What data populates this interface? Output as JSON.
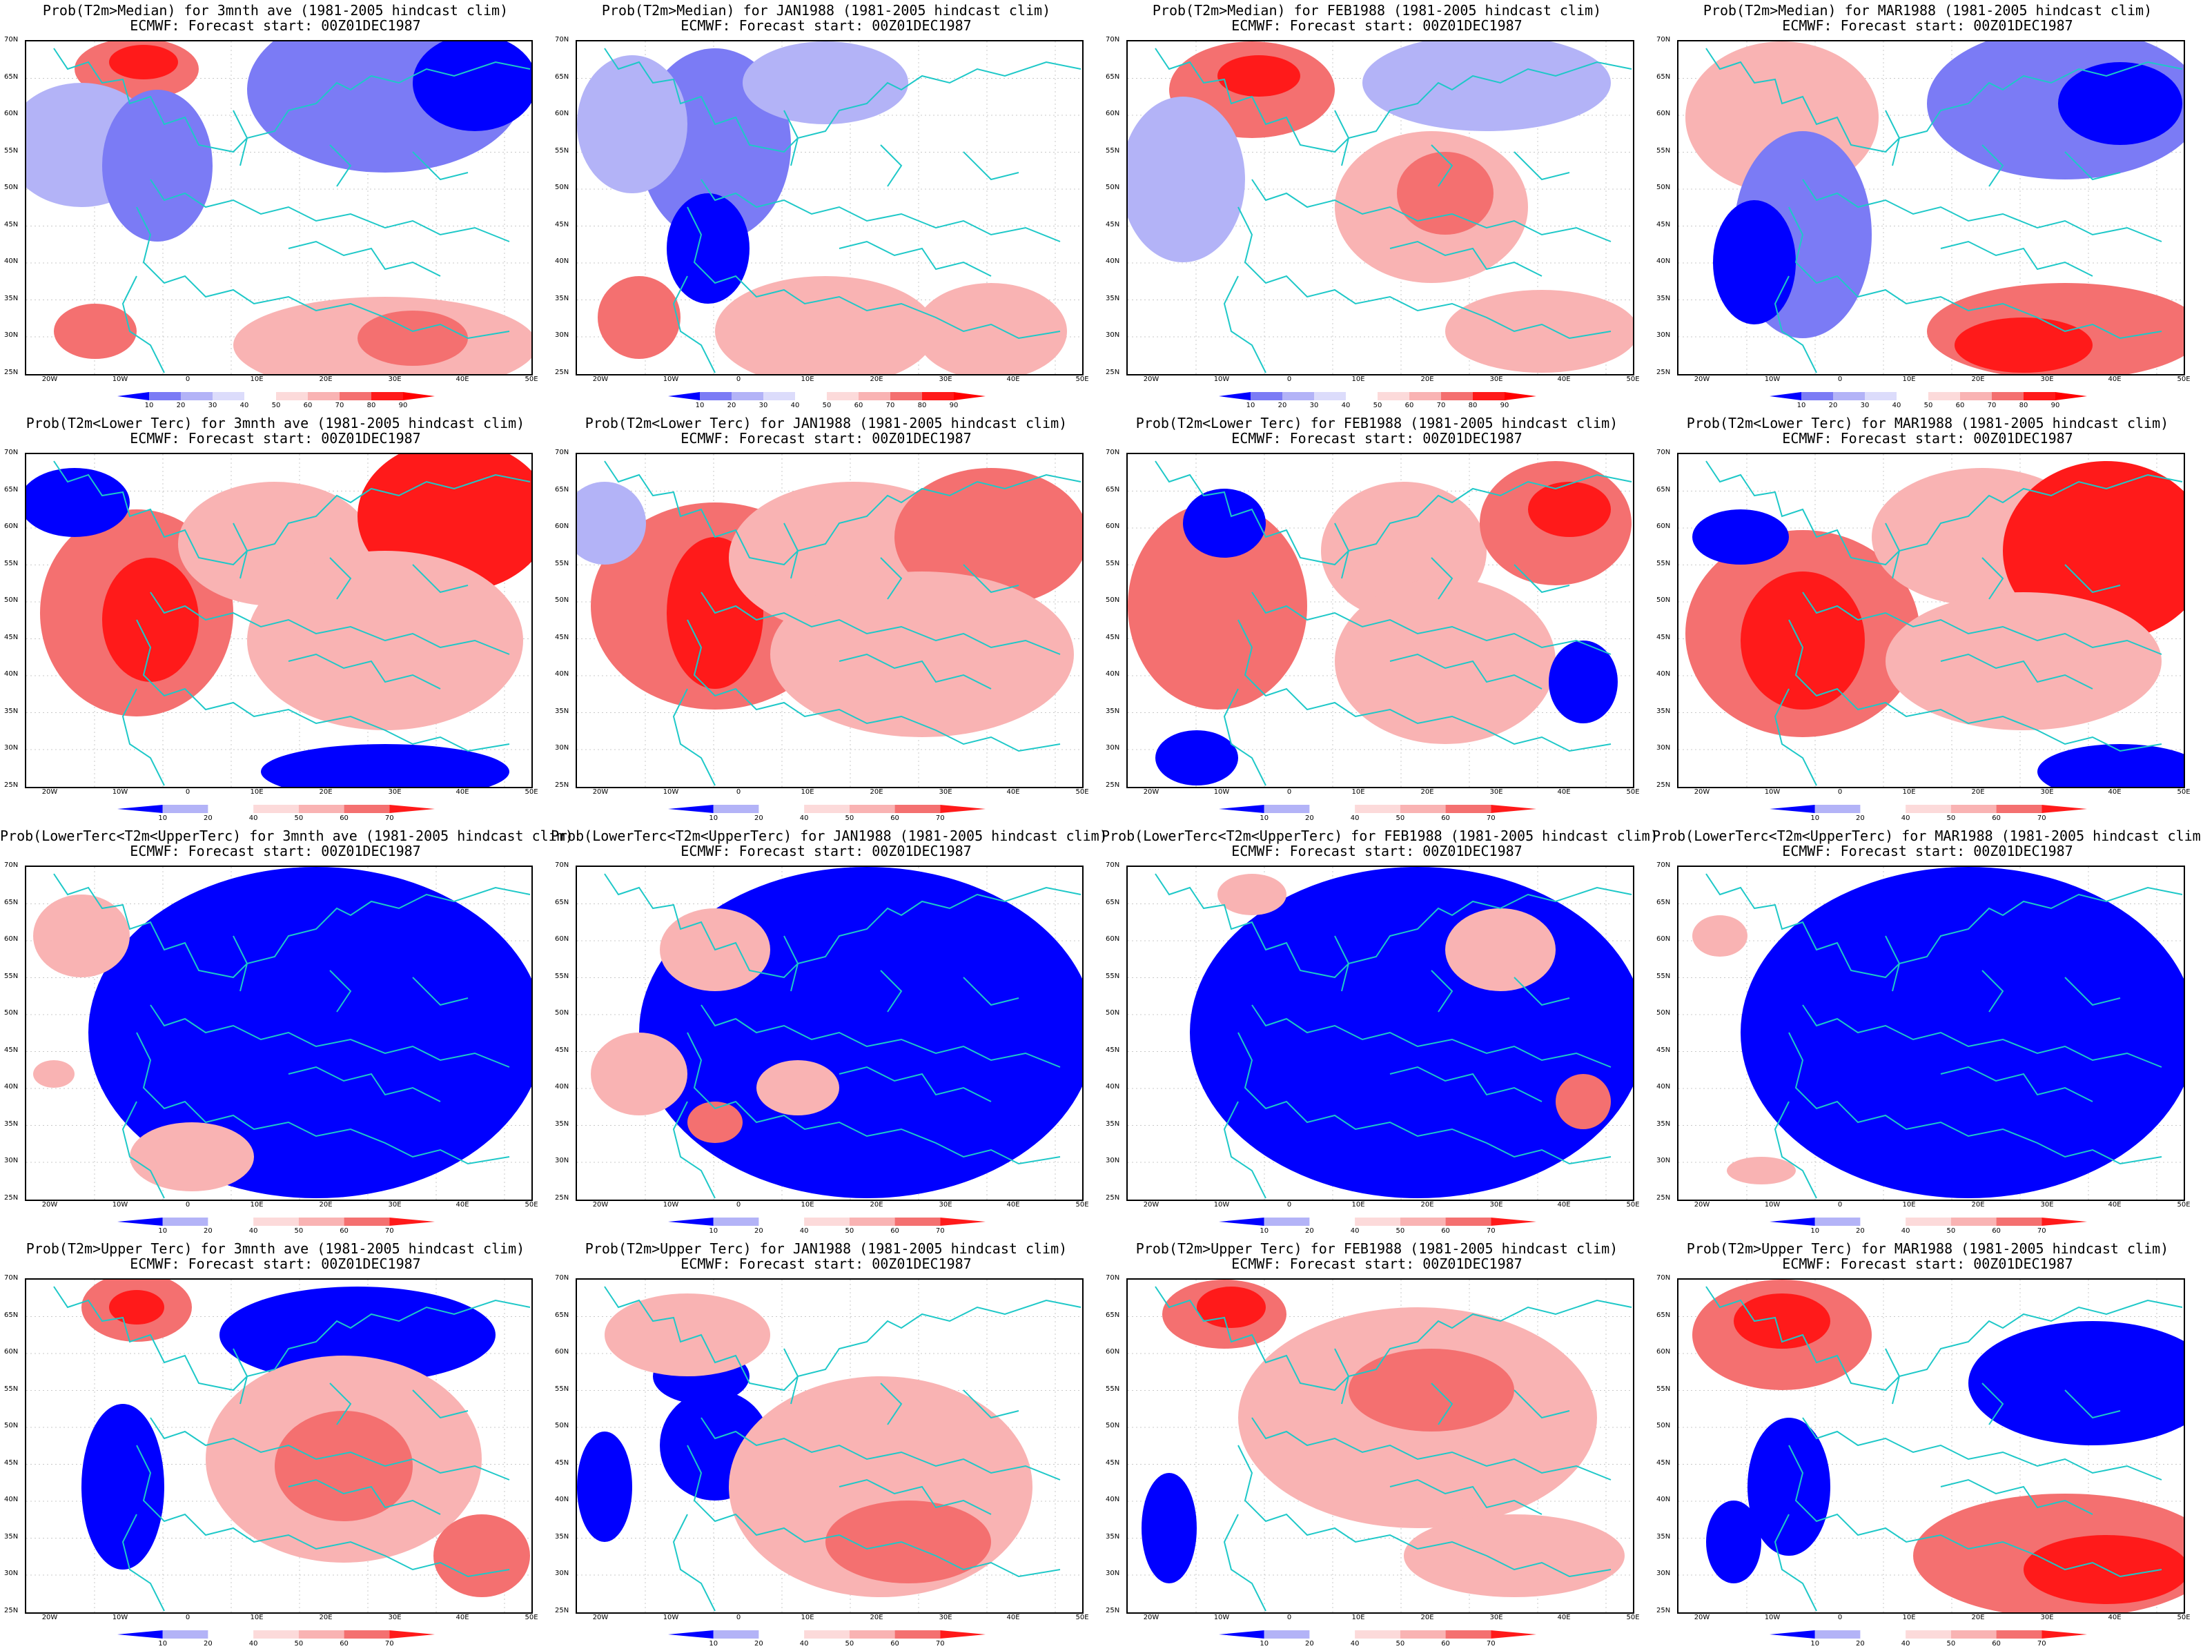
{
  "title_line2": "ECMWF: Forecast start: 00Z01DEC1987",
  "lat_labels": [
    "70N",
    "65N",
    "60N",
    "55N",
    "50N",
    "45N",
    "40N",
    "35N",
    "30N",
    "25N"
  ],
  "lon_labels": [
    "20W",
    "10W",
    "0",
    "10E",
    "20E",
    "30E",
    "40E",
    "50E"
  ],
  "colorbar_median": [
    "10",
    "20",
    "30",
    "40",
    "50",
    "60",
    "70",
    "80",
    "90"
  ],
  "colorbar_tercile": [
    "10",
    "20",
    "40",
    "50",
    "60",
    "70"
  ],
  "colors": {
    "blue_dark": "#0000ff",
    "blue_mid": "#7b7bf5",
    "blue_light": "#b3b3f7",
    "red_light": "#f9b3b3",
    "red_mid": "#f47070",
    "red_dark": "#ff1a1a",
    "coast": "#1ec8c8"
  },
  "panels": [
    {
      "title": "Prob(T2m>Median) for 3mnth ave (1981-2005 hindcast clim)",
      "scale": "median"
    },
    {
      "title": "Prob(T2m>Median) for JAN1988 (1981-2005 hindcast clim)",
      "scale": "median"
    },
    {
      "title": "Prob(T2m>Median) for FEB1988 (1981-2005 hindcast clim)",
      "scale": "median"
    },
    {
      "title": "Prob(T2m>Median) for MAR1988 (1981-2005 hindcast clim)",
      "scale": "median"
    },
    {
      "title": "Prob(T2m<Lower Terc) for 3mnth ave (1981-2005 hindcast clim)",
      "scale": "tercile"
    },
    {
      "title": "Prob(T2m<Lower Terc) for JAN1988 (1981-2005 hindcast clim)",
      "scale": "tercile"
    },
    {
      "title": "Prob(T2m<Lower Terc) for FEB1988 (1981-2005 hindcast clim)",
      "scale": "tercile"
    },
    {
      "title": "Prob(T2m<Lower Terc) for MAR1988 (1981-2005 hindcast clim)",
      "scale": "tercile"
    },
    {
      "title": "Prob(LowerTerc<T2m<UpperTerc) for 3mnth ave (1981-2005 hindcast clim)",
      "scale": "tercile"
    },
    {
      "title": "Prob(LowerTerc<T2m<UpperTerc) for JAN1988 (1981-2005 hindcast clim)",
      "scale": "tercile"
    },
    {
      "title": "Prob(LowerTerc<T2m<UpperTerc) for FEB1988 (1981-2005 hindcast clim)",
      "scale": "tercile"
    },
    {
      "title": "Prob(LowerTerc<T2m<UpperTerc) for MAR1988 (1981-2005 hindcast clim)",
      "scale": "tercile"
    },
    {
      "title": "Prob(T2m>Upper Terc) for 3mnth ave (1981-2005 hindcast clim)",
      "scale": "tercile"
    },
    {
      "title": "Prob(T2m>Upper Terc) for JAN1988 (1981-2005 hindcast clim)",
      "scale": "tercile"
    },
    {
      "title": "Prob(T2m>Upper Terc) for FEB1988 (1981-2005 hindcast clim)",
      "scale": "tercile"
    },
    {
      "title": "Prob(T2m>Upper Terc) for MAR1988 (1981-2005 hindcast clim)",
      "scale": "tercile"
    }
  ]
}
